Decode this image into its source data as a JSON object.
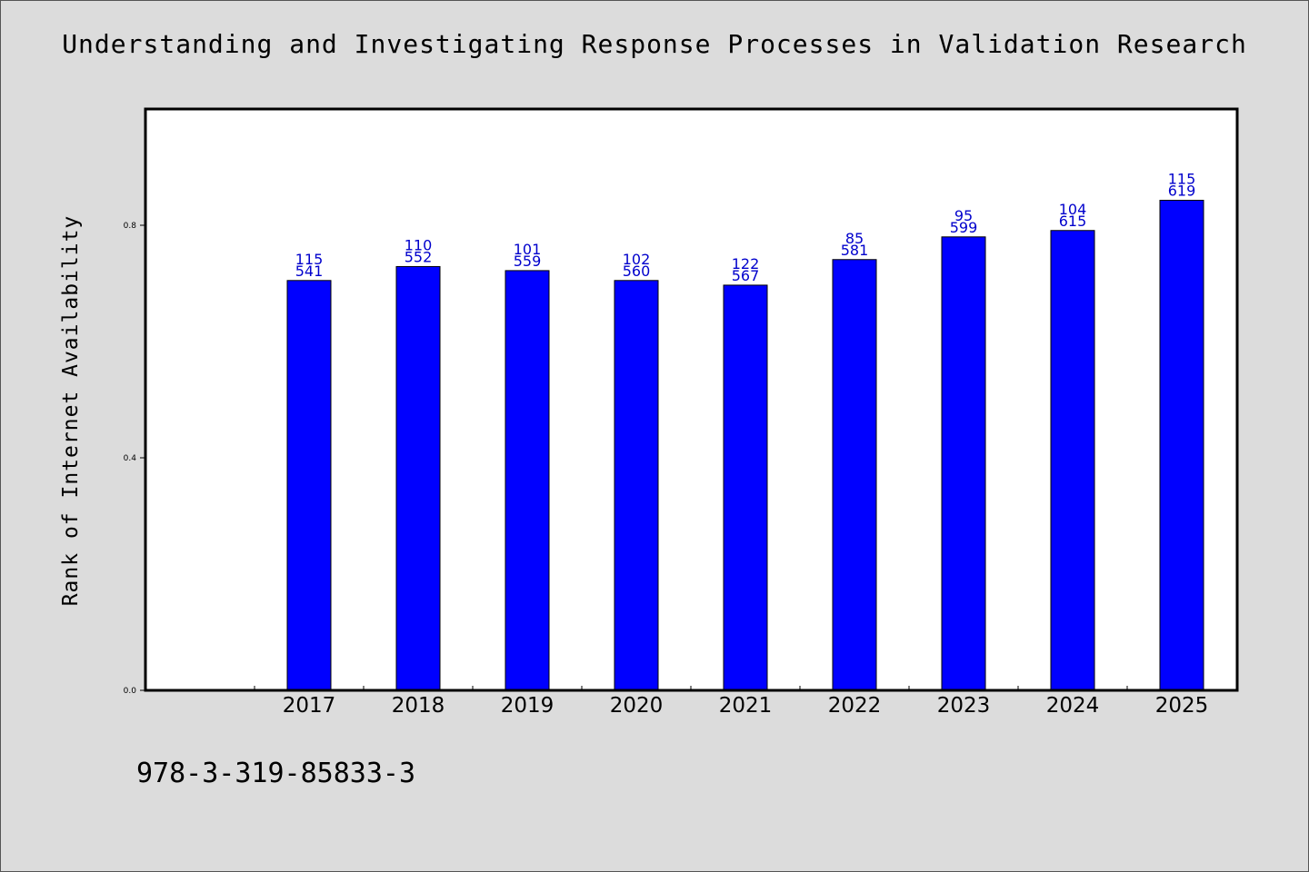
{
  "title": "Understanding and Investigating Response Processes in Validation Research",
  "ylabel": "Rank of Internet Availability",
  "isbn": "978-3-319-85833-3",
  "colors": {
    "bar": "#0000ff",
    "data_label": "#0000cc",
    "background": "#dcdcdc",
    "plot_bg": "#ffffff"
  },
  "chart_data": {
    "type": "bar",
    "title": "Understanding and Investigating Response Processes in Validation Research",
    "xlabel": "",
    "ylabel": "Rank of Internet Availability",
    "categories": [
      "2017",
      "2018",
      "2019",
      "2020",
      "2021",
      "2022",
      "2023",
      "2024",
      "2025"
    ],
    "values": [
      0.705,
      0.729,
      0.722,
      0.705,
      0.697,
      0.741,
      0.78,
      0.791,
      0.843
    ],
    "labels_top": [
      "115",
      "110",
      "101",
      "102",
      "122",
      "85",
      "95",
      "104",
      "115"
    ],
    "labels_bottom": [
      "541",
      "552",
      "559",
      "560",
      "567",
      "581",
      "599",
      "615",
      "619"
    ],
    "yticks": [
      0.0,
      0.4,
      0.8
    ],
    "ytick_labels": [
      "0.0",
      "0.4",
      "0.8"
    ],
    "ylim": [
      0,
      1.0
    ],
    "grid": false,
    "legend": "none"
  }
}
